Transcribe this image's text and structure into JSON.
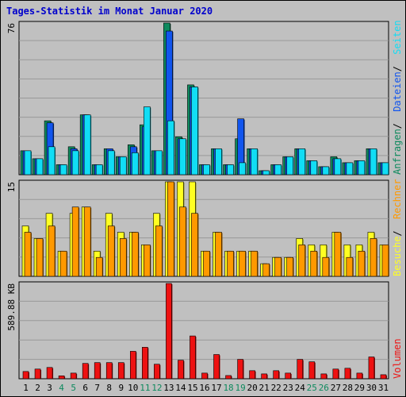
{
  "title": "Tages-Statistik im Monat Januar 2020",
  "colors": {
    "title": "#0000cc",
    "anfragen": "#0e8a5e",
    "dateien": "#1155ee",
    "seiten": "#11ddf5",
    "besuche": "#ffff22",
    "rechner": "#ff9900",
    "volumen": "#ee1111",
    "weekend": "#0e8a5e",
    "weekday": "#000000",
    "panel_bg": "#c0c0c0",
    "grid": "#999999"
  },
  "chart_data": [
    {
      "type": "bar",
      "name": "hits-files-pages",
      "ymax_label": "76",
      "ylim": [
        0,
        76
      ],
      "categories": [
        "1",
        "2",
        "3",
        "4",
        "5",
        "6",
        "7",
        "8",
        "9",
        "10",
        "11",
        "12",
        "13",
        "14",
        "15",
        "16",
        "17",
        "18",
        "19",
        "20",
        "21",
        "22",
        "23",
        "24",
        "25",
        "26",
        "27",
        "28",
        "29",
        "30",
        "31"
      ],
      "legend": [
        {
          "label": "Anfragen",
          "color_key": "anfragen"
        },
        {
          "label": "Dateien",
          "color_key": "dateien"
        },
        {
          "label": "Seiten",
          "color_key": "seiten"
        }
      ],
      "series": [
        {
          "name": "Anfragen",
          "color_key": "anfragen",
          "values": [
            12,
            8,
            27,
            5,
            14,
            30,
            5,
            13,
            9,
            15,
            25,
            12,
            76,
            19,
            45,
            5,
            13,
            5,
            18,
            13,
            2,
            5,
            9,
            13,
            7,
            4,
            9,
            6,
            7,
            13,
            6
          ]
        },
        {
          "name": "Dateien",
          "color_key": "dateien",
          "values": [
            12,
            8,
            26,
            5,
            13,
            30,
            5,
            13,
            9,
            14,
            24,
            12,
            72,
            18,
            44,
            5,
            13,
            5,
            28,
            13,
            2,
            5,
            9,
            13,
            7,
            4,
            8,
            6,
            7,
            13,
            6
          ]
        },
        {
          "name": "Seiten",
          "color_key": "seiten",
          "values": [
            12,
            8,
            14,
            5,
            12,
            30,
            5,
            12,
            9,
            11,
            34,
            12,
            27,
            18,
            44,
            5,
            13,
            5,
            6,
            13,
            2,
            5,
            9,
            13,
            7,
            4,
            8,
            6,
            7,
            13,
            6
          ]
        }
      ]
    },
    {
      "type": "bar",
      "name": "visits-sites",
      "ymax_label": "15",
      "ylim": [
        0,
        15
      ],
      "legend": [
        {
          "label": "Besuche",
          "color_key": "besuche"
        },
        {
          "label": "Rechner",
          "color_key": "rechner"
        }
      ],
      "series": [
        {
          "name": "Besuche",
          "color_key": "besuche",
          "values": [
            8,
            6,
            10,
            4,
            10,
            11,
            4,
            10,
            7,
            7,
            5,
            10,
            15,
            15,
            15,
            4,
            7,
            4,
            4,
            4,
            2,
            3,
            3,
            6,
            5,
            5,
            7,
            5,
            5,
            7,
            5
          ]
        },
        {
          "name": "Rechner",
          "color_key": "rechner",
          "values": [
            7,
            6,
            8,
            4,
            11,
            11,
            3,
            8,
            6,
            7,
            5,
            8,
            15,
            11,
            10,
            4,
            7,
            4,
            4,
            4,
            2,
            3,
            3,
            5,
            4,
            3,
            7,
            3,
            4,
            6,
            5
          ]
        }
      ]
    },
    {
      "type": "bar",
      "name": "volume",
      "ymax_label": "589.88 KB",
      "ylim": [
        0,
        589.88
      ],
      "legend": [
        {
          "label": "Volumen",
          "color_key": "volumen"
        }
      ],
      "series": [
        {
          "name": "Volumen",
          "color_key": "volumen",
          "values": [
            45,
            60,
            70,
            18,
            35,
            95,
            100,
            100,
            100,
            170,
            195,
            90,
            589.88,
            115,
            265,
            35,
            150,
            20,
            120,
            50,
            30,
            50,
            35,
            120,
            105,
            30,
            60,
            65,
            35,
            135,
            25
          ]
        }
      ]
    }
  ],
  "weekend_days": [
    "4",
    "5",
    "11",
    "12",
    "18",
    "19",
    "25",
    "26"
  ]
}
